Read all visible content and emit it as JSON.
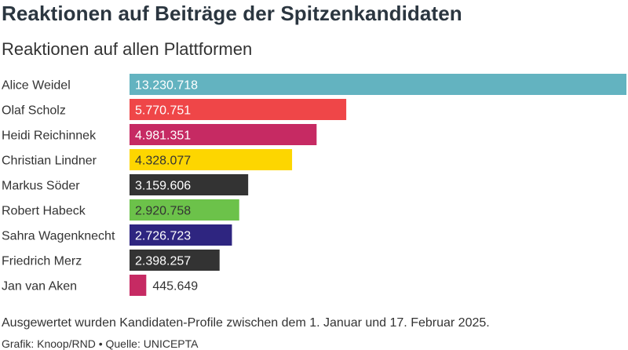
{
  "header": {
    "title": "Reaktionen auf Beiträge der Spitzenkandidaten",
    "subtitle": "Reaktionen auf allen Plattformen"
  },
  "footer": {
    "note": "Ausgewertet wurden Kandidaten-Profile zwischen dem 1. Januar und 17. Februar 2025.",
    "source": "Grafik: Knoop/RND • Quelle: UNICEPTA"
  },
  "chart_data": {
    "type": "bar",
    "orientation": "horizontal",
    "title": "Reaktionen auf Beiträge der Spitzenkandidaten",
    "subtitle": "Reaktionen auf allen Plattformen",
    "xlim": [
      0,
      13230718
    ],
    "grid": false,
    "categories": [
      "Alice Weidel",
      "Olaf Scholz",
      "Heidi Reichinnek",
      "Christian Lindner",
      "Markus Söder",
      "Robert Habeck",
      "Sahra Wagenknecht",
      "Friedrich Merz",
      "Jan van Aken"
    ],
    "values": [
      13230718,
      5770751,
      4981351,
      4328077,
      3159606,
      2920758,
      2726723,
      2398257,
      445649
    ],
    "value_labels": [
      "13.230.718",
      "5.770.751",
      "4.981.351",
      "4.328.077",
      "3.159.606",
      "2.920.758",
      "2.726.723",
      "2.398.257",
      "445.649"
    ],
    "colors": [
      "#63b3c0",
      "#ef4648",
      "#c62a63",
      "#fdd600",
      "#333333",
      "#6cc24a",
      "#2e2580",
      "#333333",
      "#c62a63"
    ],
    "label_text_colors": [
      "#ffffff",
      "#ffffff",
      "#ffffff",
      "#333333",
      "#ffffff",
      "#333333",
      "#ffffff",
      "#ffffff",
      "#333333"
    ]
  }
}
